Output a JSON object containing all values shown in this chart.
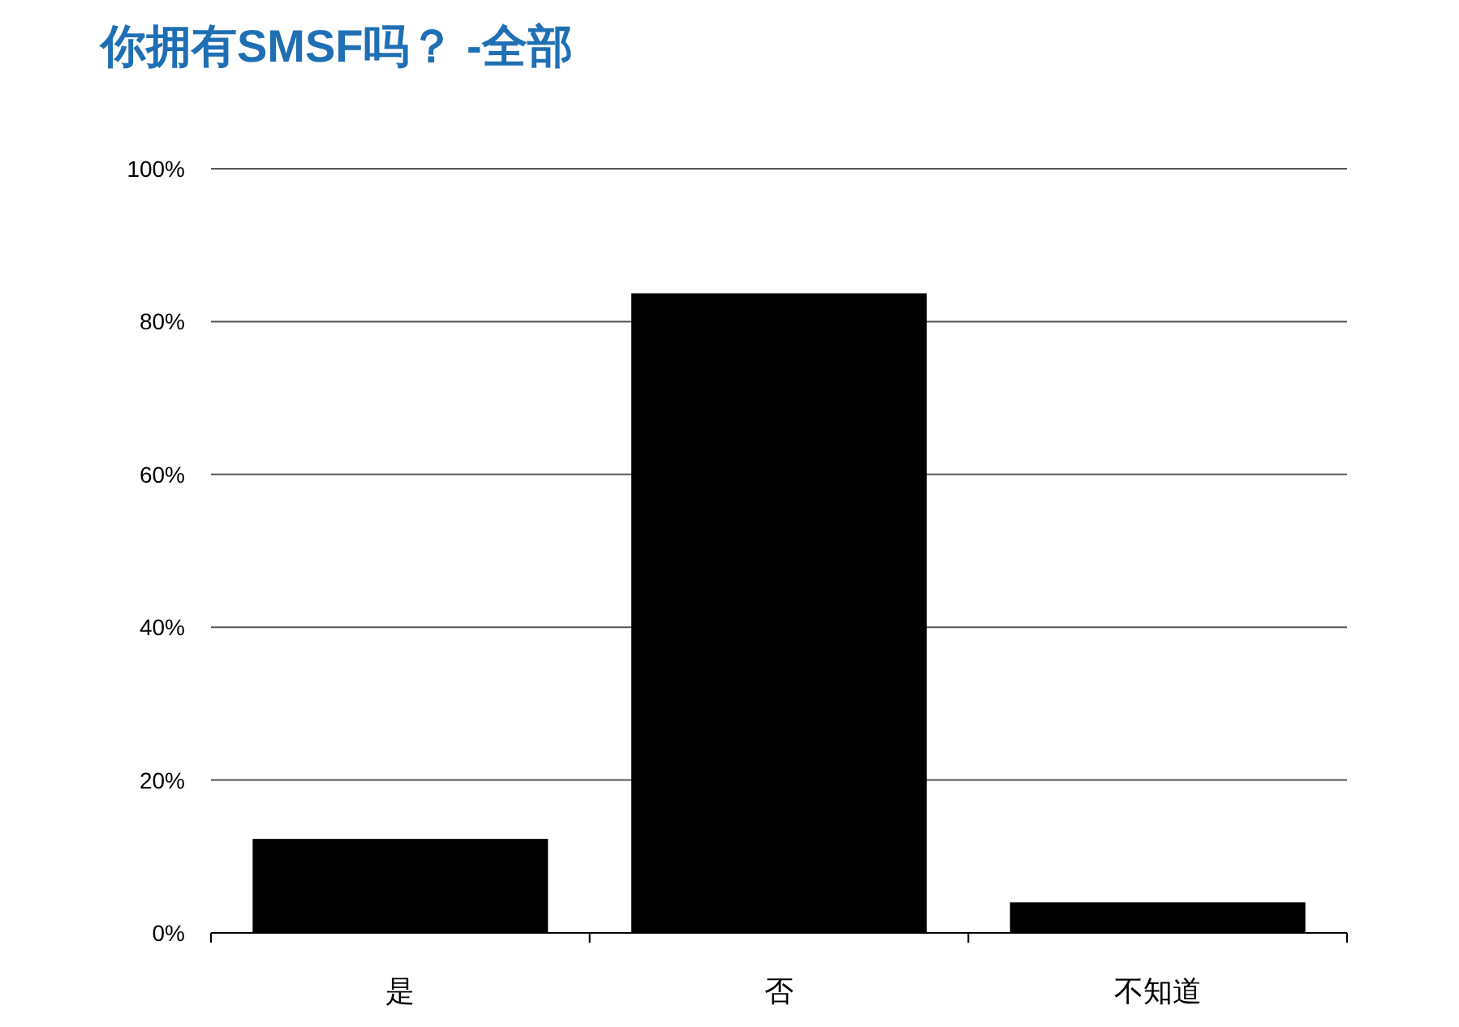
{
  "chart_data": {
    "type": "bar",
    "title": "你拥有SMSF吗？ -全部",
    "categories": [
      "是",
      "否",
      "不知道"
    ],
    "values": [
      12.3,
      83.7,
      4.0
    ],
    "color": "#000000",
    "ylim": [
      0,
      100
    ],
    "yticks": [
      {
        "value": 0,
        "label": "0%"
      },
      {
        "value": 20,
        "label": "20%"
      },
      {
        "value": 40,
        "label": "40%"
      },
      {
        "value": 60,
        "label": "60%"
      },
      {
        "value": 80,
        "label": "80%"
      },
      {
        "value": 100,
        "label": "100%"
      }
    ],
    "grid": "y"
  }
}
